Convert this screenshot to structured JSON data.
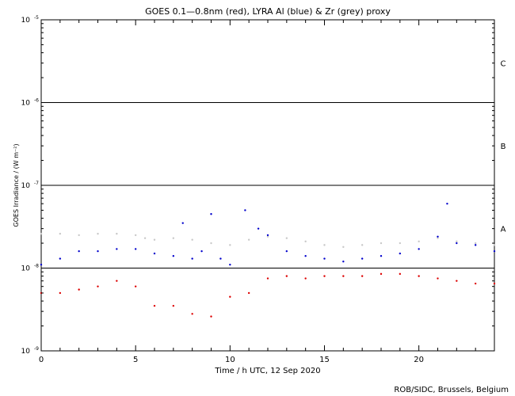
{
  "chart_data": {
    "type": "scatter",
    "title": "GOES 0.1—0.8nm (red), LYRA Al (blue) & Zr (grey) proxy",
    "xlabel": "Time / h UTC, 12 Sep 2020",
    "ylabel": "GOES Irradiance / (W m⁻²)",
    "credit": "ROB/SIDC, Brussels, Belgium",
    "x_range": [
      0,
      24
    ],
    "x_ticks": [
      0,
      5,
      10,
      15,
      20
    ],
    "x_tick_labels": [
      "0",
      "5",
      "10",
      "15",
      "20"
    ],
    "y_scale": "log",
    "y_range": [
      1e-09,
      1e-05
    ],
    "y_ticks": [
      {
        "base": "10",
        "exp": "-9"
      },
      {
        "base": "10",
        "exp": "-8"
      },
      {
        "base": "10",
        "exp": "-7"
      },
      {
        "base": "10",
        "exp": "-6"
      },
      {
        "base": "10",
        "exp": "-5"
      }
    ],
    "flare_class_lines": [
      1e-08,
      1e-07,
      1e-06
    ],
    "flare_classes": [
      {
        "label": "A",
        "y": 3e-08
      },
      {
        "label": "B",
        "y": 3e-07
      },
      {
        "label": "C",
        "y": 3e-06
      }
    ],
    "series": [
      {
        "color": "#c8c8c8",
        "values": [
          [
            0,
            2.6e-08
          ],
          [
            1,
            2.6e-08
          ],
          [
            2,
            2.5e-08
          ],
          [
            3,
            2.6e-08
          ],
          [
            4,
            2.6e-08
          ],
          [
            5,
            2.5e-08
          ],
          [
            5.5,
            2.3e-08
          ],
          [
            6,
            2.2e-08
          ],
          [
            7,
            2.3e-08
          ],
          [
            8,
            2.2e-08
          ],
          [
            9,
            2e-08
          ],
          [
            10,
            1.9e-08
          ],
          [
            11,
            2.2e-08
          ],
          [
            12,
            2.4e-08
          ],
          [
            13,
            2.3e-08
          ],
          [
            14,
            2.1e-08
          ],
          [
            15,
            1.9e-08
          ],
          [
            16,
            1.8e-08
          ],
          [
            17,
            1.9e-08
          ],
          [
            18,
            2e-08
          ],
          [
            19,
            2e-08
          ],
          [
            20,
            2.1e-08
          ],
          [
            21,
            2.3e-08
          ],
          [
            22,
            2.1e-08
          ],
          [
            23,
            2e-08
          ],
          [
            24,
            1.9e-08
          ]
        ]
      },
      {
        "color": "#0000cc",
        "values": [
          [
            0,
            1.1e-08
          ],
          [
            1,
            1.3e-08
          ],
          [
            2,
            1.6e-08
          ],
          [
            3,
            1.6e-08
          ],
          [
            4,
            1.7e-08
          ],
          [
            5,
            1.7e-08
          ],
          [
            6,
            1.5e-08
          ],
          [
            7,
            1.4e-08
          ],
          [
            7.5,
            3.5e-08
          ],
          [
            8,
            1.3e-08
          ],
          [
            8.5,
            1.6e-08
          ],
          [
            9,
            4.5e-08
          ],
          [
            9.5,
            1.3e-08
          ],
          [
            10,
            1.1e-08
          ],
          [
            10.8,
            5e-08
          ],
          [
            11.5,
            3e-08
          ],
          [
            12,
            2.5e-08
          ],
          [
            13,
            1.6e-08
          ],
          [
            14,
            1.4e-08
          ],
          [
            15,
            1.3e-08
          ],
          [
            16,
            1.2e-08
          ],
          [
            17,
            1.3e-08
          ],
          [
            18,
            1.4e-08
          ],
          [
            19,
            1.5e-08
          ],
          [
            20,
            1.7e-08
          ],
          [
            21,
            2.4e-08
          ],
          [
            21.5,
            6e-08
          ],
          [
            22,
            2e-08
          ],
          [
            23,
            1.9e-08
          ],
          [
            24,
            1.6e-08
          ]
        ]
      },
      {
        "color": "#dd0000",
        "values": [
          [
            0,
            5e-09
          ],
          [
            1,
            5e-09
          ],
          [
            2,
            5.5e-09
          ],
          [
            3,
            6e-09
          ],
          [
            4,
            7e-09
          ],
          [
            5,
            6e-09
          ],
          [
            6,
            3.5e-09
          ],
          [
            7,
            3.5e-09
          ],
          [
            8,
            2.8e-09
          ],
          [
            9,
            2.6e-09
          ],
          [
            10,
            4.5e-09
          ],
          [
            11,
            5e-09
          ],
          [
            12,
            7.5e-09
          ],
          [
            13,
            8e-09
          ],
          [
            14,
            7.5e-09
          ],
          [
            15,
            8e-09
          ],
          [
            16,
            8e-09
          ],
          [
            17,
            8e-09
          ],
          [
            18,
            8.5e-09
          ],
          [
            19,
            8.5e-09
          ],
          [
            20,
            8e-09
          ],
          [
            21,
            7.5e-09
          ],
          [
            22,
            7e-09
          ],
          [
            23,
            6.5e-09
          ],
          [
            24,
            6.5e-09
          ]
        ]
      }
    ]
  }
}
